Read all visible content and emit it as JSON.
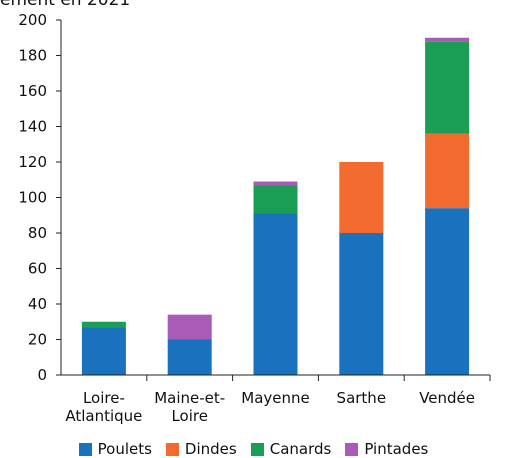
{
  "header": {
    "title_fragment": "ément en 2021"
  },
  "chart_data": {
    "type": "bar",
    "stacked": true,
    "categories": [
      "Loire-Atlantique",
      "Maine-et-Loire",
      "Mayenne",
      "Sarthe",
      "Vendée"
    ],
    "category_label_lines": [
      [
        "Loire-",
        "Atlantique"
      ],
      [
        "Maine-et-",
        "Loire"
      ],
      [
        "Mayenne"
      ],
      [
        "Sarthe"
      ],
      [
        "Vendée"
      ]
    ],
    "series": [
      {
        "name": "Poulets",
        "color": "#1a72be",
        "values": [
          27,
          20,
          91,
          80,
          94
        ]
      },
      {
        "name": "Dindes",
        "color": "#f26a2e",
        "values": [
          0,
          0,
          0,
          40,
          42
        ]
      },
      {
        "name": "Canards",
        "color": "#1a9e55",
        "values": [
          3,
          0,
          16,
          0,
          52
        ]
      },
      {
        "name": "Pintades",
        "color": "#a85bb7",
        "values": [
          0,
          14,
          2,
          0,
          2
        ]
      }
    ],
    "ylim": [
      0,
      200
    ],
    "yticks": [
      0,
      20,
      40,
      60,
      80,
      100,
      120,
      140,
      160,
      180,
      200
    ],
    "grid": false,
    "legend_position": "bottom"
  }
}
